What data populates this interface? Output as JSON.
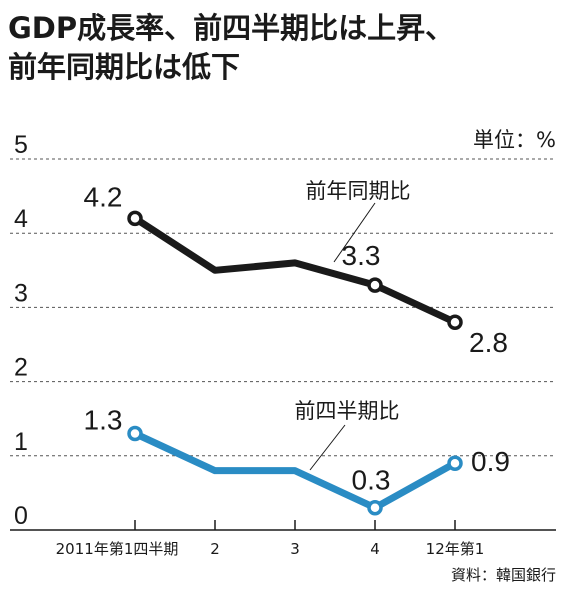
{
  "title_lines": [
    "GDP成長率、前四半期比は上昇、",
    "前年同期比は低下"
  ],
  "chart_data": {
    "type": "line",
    "title": "GDP成長率、前四半期比は上昇、前年同期比は低下",
    "unit": "単位：%",
    "categories": [
      "2011年第1四半期",
      "2",
      "3",
      "4",
      "12年第1"
    ],
    "series": [
      {
        "name": "前年同期比",
        "values": [
          4.2,
          3.5,
          3.6,
          3.3,
          2.8
        ],
        "color": "#1a1a1a"
      },
      {
        "name": "前四半期比",
        "values": [
          1.3,
          0.8,
          0.8,
          0.3,
          0.9
        ],
        "color": "#2a8cc4"
      }
    ],
    "data_labels": [
      {
        "series": 0,
        "index": 0,
        "text": "4.2"
      },
      {
        "series": 0,
        "index": 3,
        "text": "3.3"
      },
      {
        "series": 0,
        "index": 4,
        "text": "2.8"
      },
      {
        "series": 1,
        "index": 0,
        "text": "1.3"
      },
      {
        "series": 1,
        "index": 3,
        "text": "0.3"
      },
      {
        "series": 1,
        "index": 4,
        "text": "0.9"
      }
    ],
    "ylim": [
      0,
      5
    ],
    "yticks": [
      0,
      1,
      2,
      3,
      4,
      5
    ],
    "grid": true,
    "source": "資料：韓国銀行"
  }
}
